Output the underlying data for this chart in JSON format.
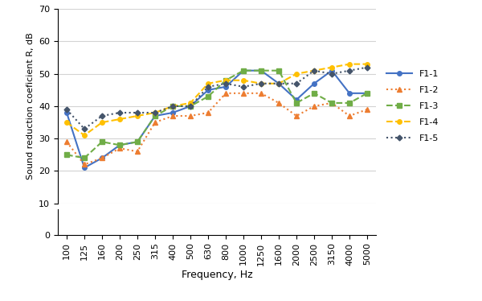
{
  "frequencies": [
    100,
    125,
    160,
    200,
    250,
    315,
    400,
    500,
    630,
    800,
    1000,
    1250,
    1600,
    2000,
    2500,
    3150,
    4000,
    5000
  ],
  "F1-1": [
    38,
    21,
    24,
    28,
    29,
    37,
    38,
    40,
    45,
    46,
    51,
    51,
    47,
    42,
    47,
    51,
    44,
    44
  ],
  "F1-2": [
    29,
    22,
    24,
    27,
    26,
    35,
    37,
    37,
    38,
    44,
    44,
    44,
    41,
    37,
    40,
    41,
    37,
    39
  ],
  "F1-3": [
    25,
    24,
    29,
    28,
    29,
    37,
    40,
    40,
    43,
    48,
    51,
    51,
    51,
    41,
    44,
    41,
    41,
    44
  ],
  "F1-4": [
    35,
    31,
    35,
    36,
    37,
    38,
    40,
    41,
    47,
    48,
    48,
    47,
    47,
    50,
    51,
    52,
    53,
    53
  ],
  "F1-5": [
    39,
    33,
    37,
    38,
    38,
    38,
    40,
    40,
    46,
    47,
    46,
    47,
    47,
    47,
    51,
    50,
    51,
    52
  ],
  "colors": {
    "F1-1": "#4472C4",
    "F1-2": "#ED7D31",
    "F1-3": "#70AD47",
    "F1-4": "#FFC000",
    "F1-5": "#44546A"
  },
  "ylim_main": [
    10,
    70
  ],
  "ylim_zero": [
    0,
    10
  ],
  "yticks_main": [
    10,
    20,
    30,
    40,
    50,
    60,
    70
  ],
  "ytick_zero": [
    0
  ],
  "ylabel": "Sound reduction coeficient R, dB",
  "xlabel": "Frequency, Hz",
  "figsize": [
    6.0,
    3.74
  ],
  "dpi": 100,
  "bg_color": "#FFFFFF"
}
